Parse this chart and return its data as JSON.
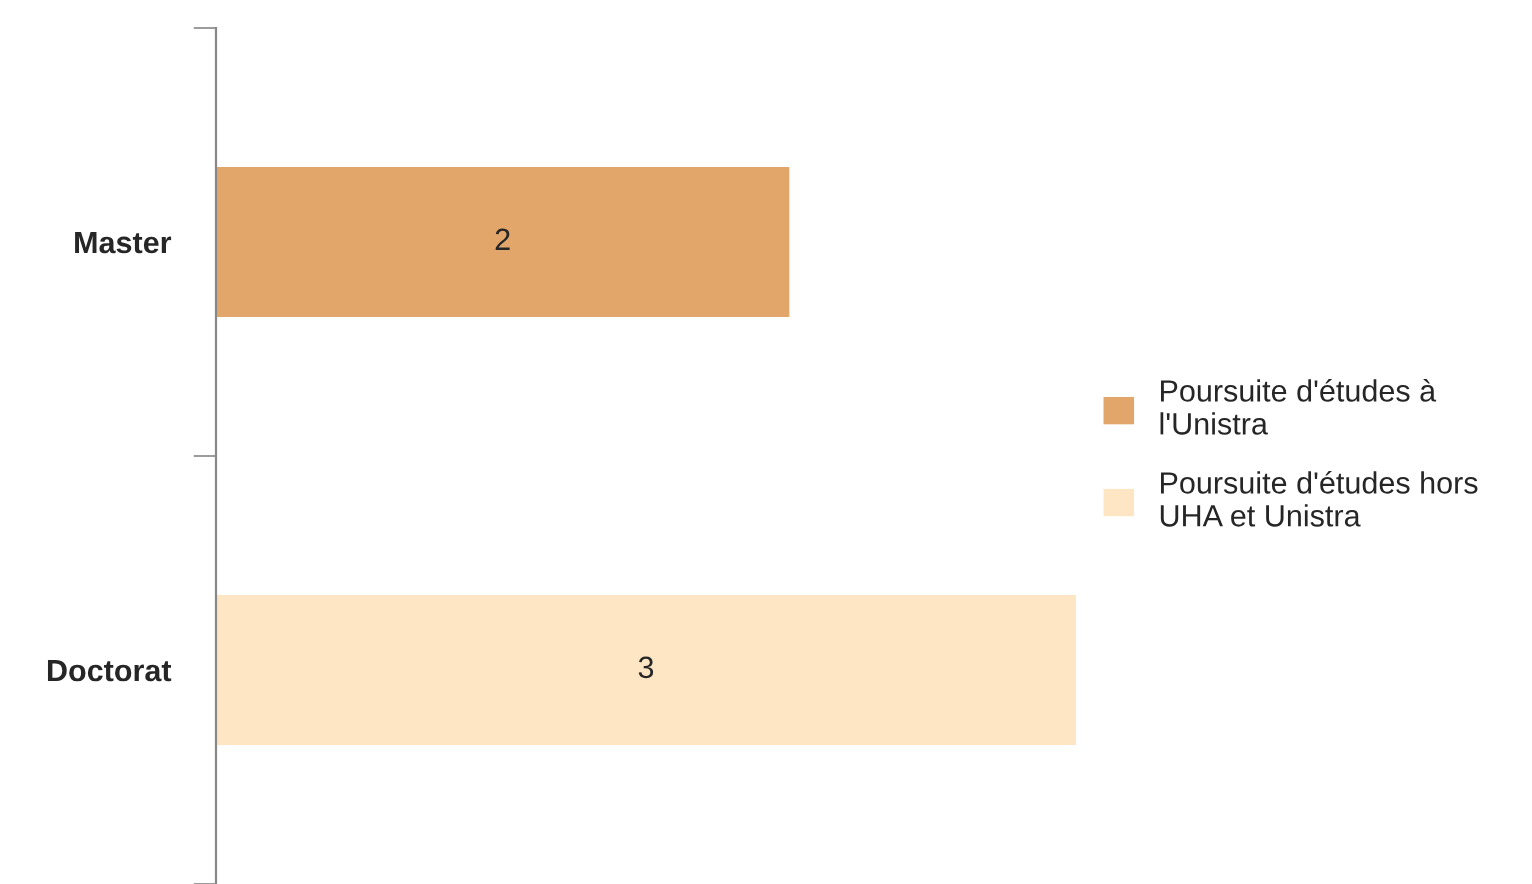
{
  "chart_data": {
    "type": "bar",
    "orientation": "horizontal",
    "categories": [
      "Master",
      "Doctorat"
    ],
    "series": [
      {
        "name": "Poursuite d'études à l'Unistra",
        "color": "#e3a66a",
        "values": [
          2,
          null
        ]
      },
      {
        "name": "Poursuite d'études hors UHA et Unistra",
        "color": "#fee6c4",
        "values": [
          null,
          3
        ]
      }
    ],
    "data_labels": true,
    "legend": "right",
    "grid": false
  }
}
